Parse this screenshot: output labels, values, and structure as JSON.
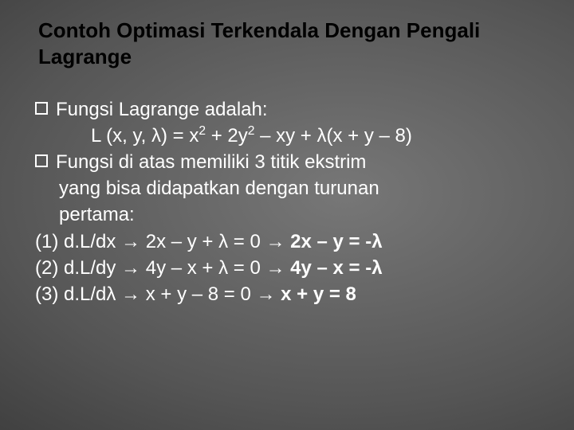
{
  "background": {
    "type": "radial-gradient",
    "inner_color": "#777777",
    "mid_color": "#555555",
    "outer_color": "#333333"
  },
  "title_color": "#000000",
  "body_color": "#ffffff",
  "title_fontsize": 26,
  "body_fontsize": 24,
  "slide": {
    "title": "Contoh Optimasi Terkendala Dengan Pengali Lagrange",
    "bullet1": "Fungsi Lagrange adalah:",
    "formula_prefix": "L (x, y, λ) = x",
    "formula_mid1": " + 2y",
    "formula_suffix": " – xy + λ(x + y – 8)",
    "sup2a": "2",
    "sup2b": "2",
    "bullet2_l1": "Fungsi di atas memiliki 3 titik ekstrim",
    "bullet2_l2": "yang bisa didapatkan dengan turunan",
    "bullet2_l3": "pertama:",
    "eq1_a": "(1) d.L/dx ",
    "eq1_b": " 2x – y + λ = 0 ",
    "eq1_c": " 2x – y = -λ",
    "eq2_a": "(2) d.L/dy ",
    "eq2_b": " 4y – x + λ = 0 ",
    "eq2_c": " 4y – x = -λ",
    "eq3_a": "(3) d.L/dλ ",
    "eq3_b": "  x + y – 8 = 0 ",
    "eq3_c": " x + y = 8",
    "arrow": "→"
  }
}
